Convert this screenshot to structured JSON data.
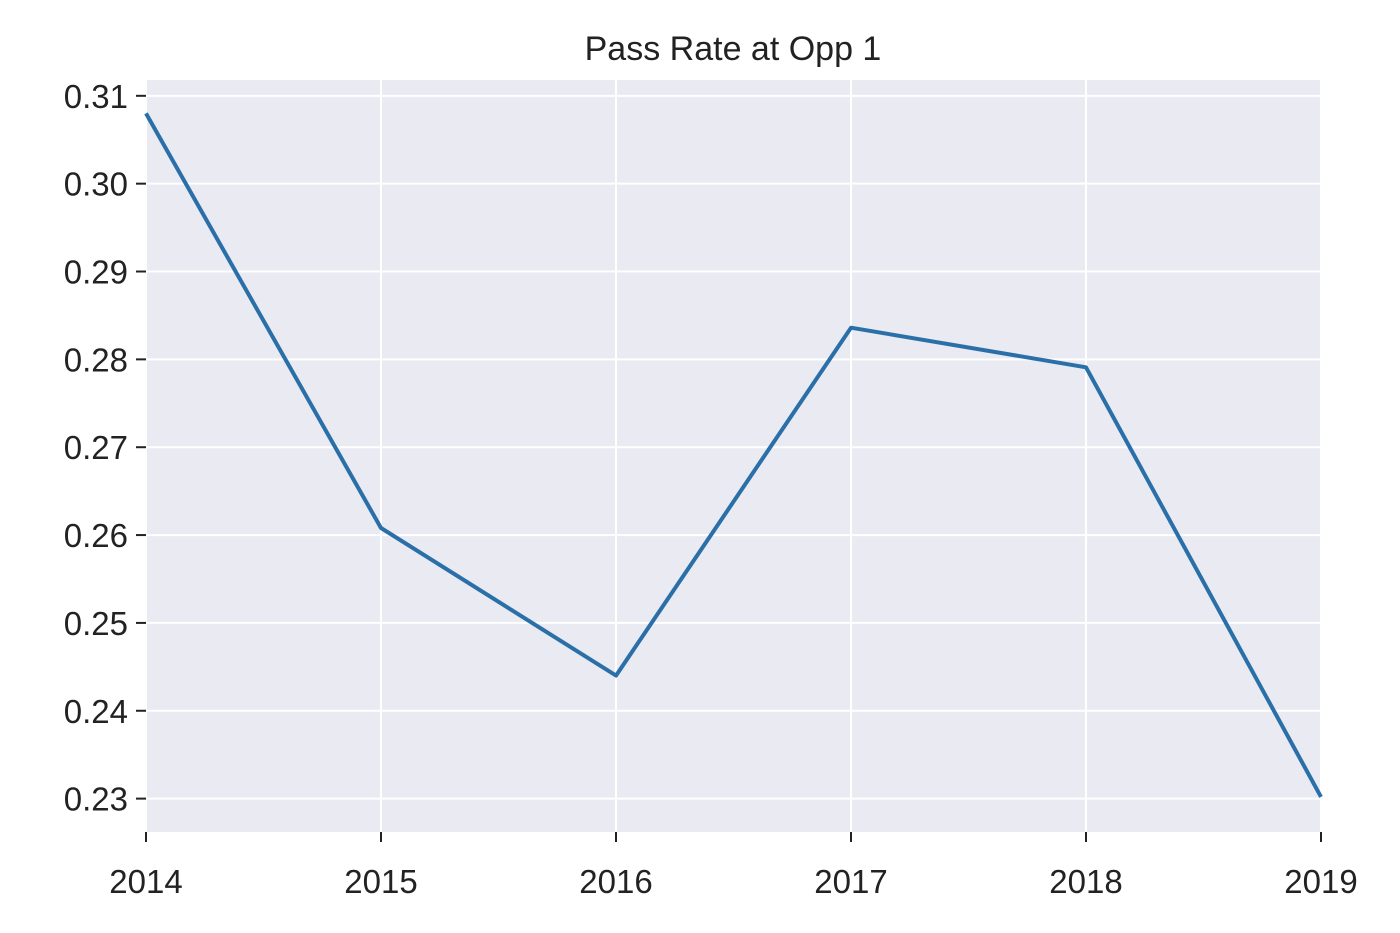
{
  "chart_data": {
    "type": "line",
    "title": "Pass Rate at Opp 1",
    "xlabel": "",
    "ylabel": "",
    "x": [
      2014,
      2015,
      2016,
      2017,
      2018,
      2019
    ],
    "x_tick_labels": [
      "2014",
      "2015",
      "2016",
      "2017",
      "2018",
      "2019"
    ],
    "y_ticks": [
      0.23,
      0.24,
      0.25,
      0.26,
      0.27,
      0.28,
      0.29,
      0.3,
      0.31
    ],
    "y_tick_labels": [
      "0.23",
      "0.24",
      "0.25",
      "0.26",
      "0.27",
      "0.28",
      "0.29",
      "0.30",
      "0.31"
    ],
    "xlim": [
      2014,
      2019
    ],
    "ylim": [
      0.2262,
      0.3118
    ],
    "grid": true,
    "series": [
      {
        "values": [
          0.308,
          0.2608,
          0.244,
          0.2836,
          0.2791,
          0.2302
        ]
      }
    ],
    "colors": {
      "line": "#2a6fa8",
      "plot_background": "#e9eaf2",
      "grid": "#ffffff"
    }
  }
}
